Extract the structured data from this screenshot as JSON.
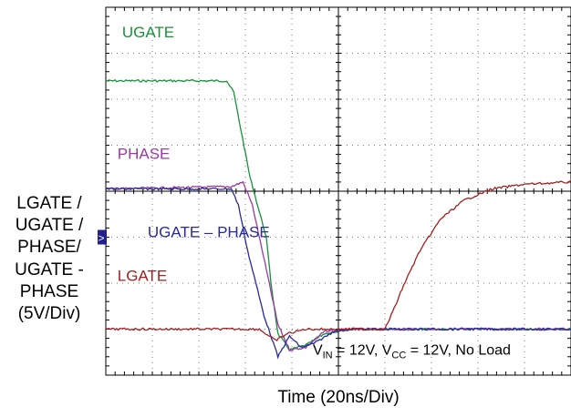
{
  "chart_data": {
    "type": "line",
    "xlabel": "Time (20ns/Div)",
    "ylabel_lines": [
      "LGATE /",
      "UGATE /",
      "PHASE/",
      "UGATE -",
      "PHASE",
      "(5V/Div)"
    ],
    "x_divisions": 10,
    "y_divisions": 8,
    "grid": true,
    "x_unit": "div (20ns/div)",
    "y_unit": "div (5V/div)",
    "ground_marker_div": -1.0,
    "annotation": {
      "prefix_v": "V",
      "sub_in": "IN",
      "mid": " = 12V, V",
      "sub_cc": "CC",
      "suffix": " = 12V, No Load"
    },
    "series": [
      {
        "name": "UGATE",
        "color": "#18923a",
        "x": [
          -5,
          -2.4,
          -2.25,
          -1.9,
          -1.55,
          -1.45,
          -1.3,
          -1.05,
          -0.7,
          -0.3,
          0.3,
          5
        ],
        "y": [
          2.4,
          2.4,
          2.15,
          0.3,
          -1.0,
          -2.0,
          -3.1,
          -3.45,
          -3.35,
          -3.1,
          -3.0,
          -3.0
        ]
      },
      {
        "name": "PHASE",
        "color": "#9a3aa3",
        "x": [
          -5,
          -2.3,
          -2.05,
          -1.85,
          -1.55,
          -1.3,
          -1.05,
          -0.7,
          -0.3,
          0.3,
          5
        ],
        "y": [
          0.05,
          0.1,
          0.2,
          -0.3,
          -1.7,
          -2.9,
          -3.45,
          -3.4,
          -3.05,
          -3.0,
          -3.0
        ]
      },
      {
        "name": "UGATE – PHASE",
        "color": "#2a2a9a",
        "x": [
          -5,
          -2.3,
          -2.15,
          -1.95,
          -1.6,
          -1.3,
          -1.05,
          -0.8,
          -0.5,
          -0.1,
          0.3,
          5
        ],
        "y": [
          0.05,
          0.05,
          -0.3,
          -1.3,
          -2.7,
          -3.6,
          -3.15,
          -3.4,
          -3.3,
          -3.05,
          -3.0,
          -3.0
        ]
      },
      {
        "name": "LGATE",
        "color": "#a32020",
        "x": [
          -5,
          -1.7,
          -1.35,
          -1.1,
          -0.7,
          -0.3,
          0.5,
          1.0,
          1.2,
          1.4,
          1.75,
          2.2,
          2.7,
          3.3,
          4.0,
          5.0
        ],
        "y": [
          -3.0,
          -3.0,
          -3.25,
          -3.1,
          -3.0,
          -3.0,
          -3.0,
          -3.0,
          -2.55,
          -2.05,
          -1.3,
          -0.6,
          -0.2,
          0.05,
          0.15,
          0.2
        ]
      }
    ],
    "labels": [
      {
        "text": "UGATE",
        "color": "#18923a",
        "x": -4.65,
        "y": 3.35
      },
      {
        "text": "PHASE",
        "color": "#9a3aa3",
        "x": -4.75,
        "y": 0.7
      },
      {
        "text": "UGATE – PHASE",
        "color": "#2a2a9a",
        "x": -4.1,
        "y": -1.0
      },
      {
        "text": "LGATE",
        "color": "#a32020",
        "x": -4.75,
        "y": -1.95
      }
    ]
  }
}
